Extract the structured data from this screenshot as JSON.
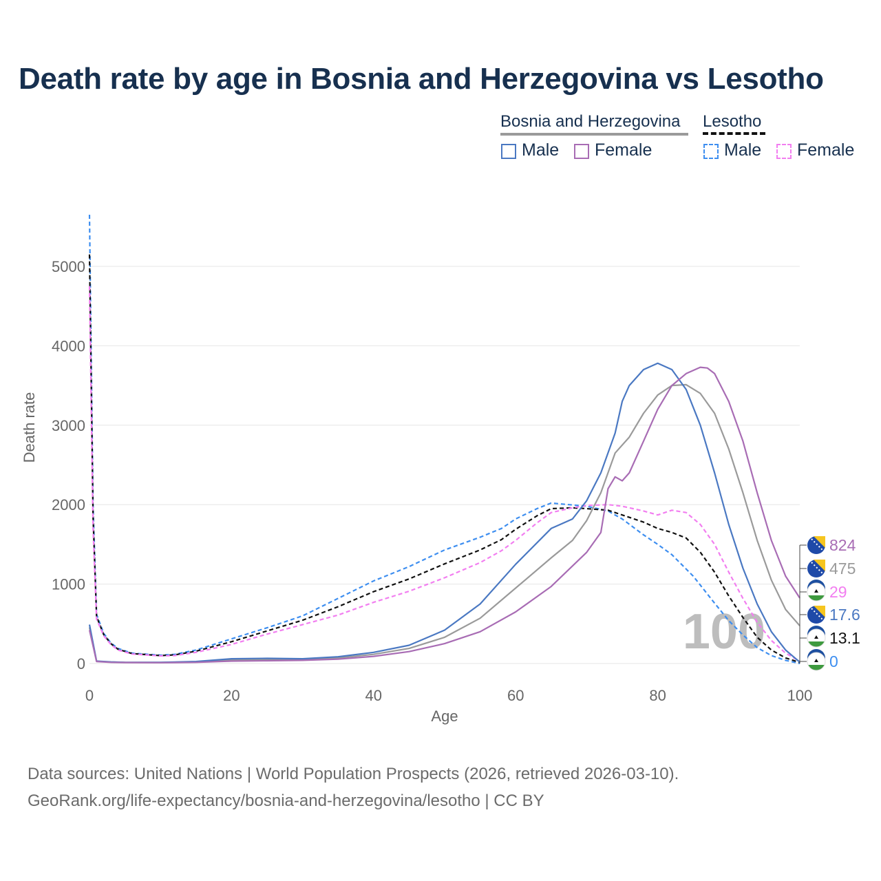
{
  "title": "Death rate by age in Bosnia and Herzegovina vs Lesotho",
  "legend": {
    "country1": "Bosnia and Herzegovina",
    "country2": "Lesotho",
    "male": "Male",
    "female": "Female"
  },
  "footer": {
    "line1": "Data sources: United Nations | World Population Prospects (2026, retrieved 2026-03-10).",
    "line2": "GeoRank.org/life-expectancy/bosnia-and-herzegovina/lesotho | CC BY"
  },
  "colors": {
    "bih_male": "#4a78c2",
    "bih_female": "#a86cb4",
    "bih_total": "#9a9a9a",
    "les_male": "#3d8ef0",
    "les_female": "#f27ef0",
    "les_total": "#111111",
    "title": "#17304f",
    "axis_text": "#666666"
  },
  "chart_data": {
    "type": "line",
    "title": "Death rate by age in Bosnia and Herzegovina vs Lesotho",
    "xlabel": "Age",
    "ylabel": "Death rate",
    "xlim": [
      0,
      100
    ],
    "ylim": [
      0,
      5000
    ],
    "xticks": [
      0,
      20,
      40,
      60,
      80,
      100
    ],
    "yticks": [
      0,
      1000,
      2000,
      3000,
      4000,
      5000
    ],
    "grid": true,
    "watermark": "100",
    "series": [
      {
        "key": "bih_male",
        "name": "Bosnia and Herzegovina Male",
        "country": "Bosnia and Herzegovina",
        "dashed": false,
        "end_label": "17.6",
        "points": [
          [
            0,
            490
          ],
          [
            1,
            30
          ],
          [
            3,
            20
          ],
          [
            5,
            15
          ],
          [
            10,
            15
          ],
          [
            15,
            25
          ],
          [
            20,
            60
          ],
          [
            25,
            65
          ],
          [
            30,
            60
          ],
          [
            35,
            85
          ],
          [
            40,
            140
          ],
          [
            45,
            230
          ],
          [
            50,
            420
          ],
          [
            55,
            750
          ],
          [
            60,
            1250
          ],
          [
            65,
            1700
          ],
          [
            68,
            1820
          ],
          [
            70,
            2050
          ],
          [
            72,
            2400
          ],
          [
            74,
            2900
          ],
          [
            75,
            3300
          ],
          [
            76,
            3500
          ],
          [
            78,
            3700
          ],
          [
            80,
            3780
          ],
          [
            82,
            3700
          ],
          [
            84,
            3450
          ],
          [
            86,
            3000
          ],
          [
            88,
            2400
          ],
          [
            90,
            1750
          ],
          [
            92,
            1200
          ],
          [
            94,
            750
          ],
          [
            96,
            400
          ],
          [
            98,
            170
          ],
          [
            100,
            17.6
          ]
        ]
      },
      {
        "key": "bih_female",
        "name": "Bosnia and Herzegovina Female",
        "country": "Bosnia and Herzegovina",
        "dashed": false,
        "end_label": "824",
        "points": [
          [
            0,
            420
          ],
          [
            1,
            25
          ],
          [
            3,
            15
          ],
          [
            5,
            12
          ],
          [
            10,
            10
          ],
          [
            15,
            15
          ],
          [
            20,
            30
          ],
          [
            25,
            35
          ],
          [
            30,
            40
          ],
          [
            35,
            55
          ],
          [
            40,
            90
          ],
          [
            45,
            150
          ],
          [
            50,
            250
          ],
          [
            55,
            400
          ],
          [
            60,
            650
          ],
          [
            65,
            970
          ],
          [
            70,
            1400
          ],
          [
            72,
            1650
          ],
          [
            73,
            2200
          ],
          [
            74,
            2350
          ],
          [
            75,
            2300
          ],
          [
            76,
            2400
          ],
          [
            78,
            2800
          ],
          [
            80,
            3200
          ],
          [
            82,
            3500
          ],
          [
            84,
            3650
          ],
          [
            86,
            3730
          ],
          [
            87,
            3720
          ],
          [
            88,
            3650
          ],
          [
            90,
            3300
          ],
          [
            92,
            2800
          ],
          [
            94,
            2150
          ],
          [
            96,
            1550
          ],
          [
            98,
            1100
          ],
          [
            100,
            824
          ]
        ]
      },
      {
        "key": "bih_total",
        "name": "Bosnia and Herzegovina",
        "country": "Bosnia and Herzegovina",
        "dashed": false,
        "end_label": "475",
        "points": [
          [
            0,
            455
          ],
          [
            1,
            28
          ],
          [
            3,
            18
          ],
          [
            5,
            14
          ],
          [
            10,
            13
          ],
          [
            15,
            20
          ],
          [
            20,
            45
          ],
          [
            25,
            50
          ],
          [
            30,
            50
          ],
          [
            35,
            70
          ],
          [
            40,
            115
          ],
          [
            45,
            190
          ],
          [
            50,
            330
          ],
          [
            55,
            570
          ],
          [
            60,
            950
          ],
          [
            65,
            1330
          ],
          [
            68,
            1550
          ],
          [
            70,
            1800
          ],
          [
            72,
            2150
          ],
          [
            74,
            2650
          ],
          [
            76,
            2850
          ],
          [
            78,
            3150
          ],
          [
            80,
            3380
          ],
          [
            82,
            3500
          ],
          [
            84,
            3510
          ],
          [
            86,
            3400
          ],
          [
            88,
            3150
          ],
          [
            90,
            2700
          ],
          [
            92,
            2150
          ],
          [
            94,
            1550
          ],
          [
            96,
            1050
          ],
          [
            98,
            680
          ],
          [
            100,
            475
          ]
        ]
      },
      {
        "key": "les_male",
        "name": "Lesotho Male",
        "country": "Lesotho",
        "dashed": true,
        "end_label": "0",
        "points": [
          [
            0,
            5650
          ],
          [
            0.5,
            2000
          ],
          [
            1,
            620
          ],
          [
            2,
            380
          ],
          [
            3,
            260
          ],
          [
            4,
            190
          ],
          [
            6,
            130
          ],
          [
            10,
            105
          ],
          [
            12,
            115
          ],
          [
            15,
            170
          ],
          [
            20,
            310
          ],
          [
            25,
            450
          ],
          [
            30,
            600
          ],
          [
            35,
            820
          ],
          [
            40,
            1040
          ],
          [
            45,
            1220
          ],
          [
            50,
            1430
          ],
          [
            55,
            1590
          ],
          [
            58,
            1700
          ],
          [
            60,
            1820
          ],
          [
            63,
            1950
          ],
          [
            65,
            2020
          ],
          [
            70,
            1980
          ],
          [
            73,
            1920
          ],
          [
            75,
            1820
          ],
          [
            78,
            1620
          ],
          [
            80,
            1500
          ],
          [
            82,
            1370
          ],
          [
            85,
            1100
          ],
          [
            88,
            760
          ],
          [
            90,
            540
          ],
          [
            92,
            360
          ],
          [
            94,
            200
          ],
          [
            96,
            100
          ],
          [
            98,
            40
          ],
          [
            100,
            0
          ]
        ]
      },
      {
        "key": "les_female",
        "name": "Lesotho Female",
        "country": "Lesotho",
        "dashed": true,
        "end_label": "29",
        "points": [
          [
            0,
            4750
          ],
          [
            0.5,
            1700
          ],
          [
            1,
            560
          ],
          [
            2,
            350
          ],
          [
            3,
            240
          ],
          [
            4,
            170
          ],
          [
            6,
            120
          ],
          [
            10,
            95
          ],
          [
            12,
            100
          ],
          [
            15,
            140
          ],
          [
            20,
            240
          ],
          [
            25,
            370
          ],
          [
            30,
            490
          ],
          [
            35,
            610
          ],
          [
            40,
            770
          ],
          [
            45,
            910
          ],
          [
            50,
            1080
          ],
          [
            55,
            1270
          ],
          [
            58,
            1420
          ],
          [
            60,
            1550
          ],
          [
            63,
            1770
          ],
          [
            65,
            1900
          ],
          [
            68,
            1960
          ],
          [
            70,
            1990
          ],
          [
            73,
            2000
          ],
          [
            75,
            1980
          ],
          [
            78,
            1920
          ],
          [
            80,
            1870
          ],
          [
            82,
            1930
          ],
          [
            84,
            1900
          ],
          [
            86,
            1750
          ],
          [
            88,
            1500
          ],
          [
            90,
            1150
          ],
          [
            92,
            820
          ],
          [
            94,
            520
          ],
          [
            96,
            290
          ],
          [
            98,
            130
          ],
          [
            100,
            29
          ]
        ]
      },
      {
        "key": "les_total",
        "name": "Lesotho",
        "country": "Lesotho",
        "dashed": true,
        "end_label": "13.1",
        "points": [
          [
            0,
            5150
          ],
          [
            0.5,
            1850
          ],
          [
            1,
            590
          ],
          [
            2,
            365
          ],
          [
            3,
            250
          ],
          [
            4,
            180
          ],
          [
            6,
            125
          ],
          [
            10,
            100
          ],
          [
            12,
            108
          ],
          [
            15,
            155
          ],
          [
            20,
            275
          ],
          [
            25,
            410
          ],
          [
            30,
            545
          ],
          [
            35,
            715
          ],
          [
            40,
            905
          ],
          [
            45,
            1065
          ],
          [
            50,
            1255
          ],
          [
            55,
            1430
          ],
          [
            58,
            1560
          ],
          [
            60,
            1690
          ],
          [
            63,
            1860
          ],
          [
            65,
            1950
          ],
          [
            68,
            1960
          ],
          [
            70,
            1950
          ],
          [
            73,
            1930
          ],
          [
            75,
            1870
          ],
          [
            78,
            1780
          ],
          [
            80,
            1700
          ],
          [
            82,
            1650
          ],
          [
            84,
            1580
          ],
          [
            86,
            1400
          ],
          [
            88,
            1150
          ],
          [
            90,
            850
          ],
          [
            92,
            580
          ],
          [
            94,
            330
          ],
          [
            96,
            170
          ],
          [
            98,
            70
          ],
          [
            100,
            13.1
          ]
        ]
      }
    ]
  }
}
